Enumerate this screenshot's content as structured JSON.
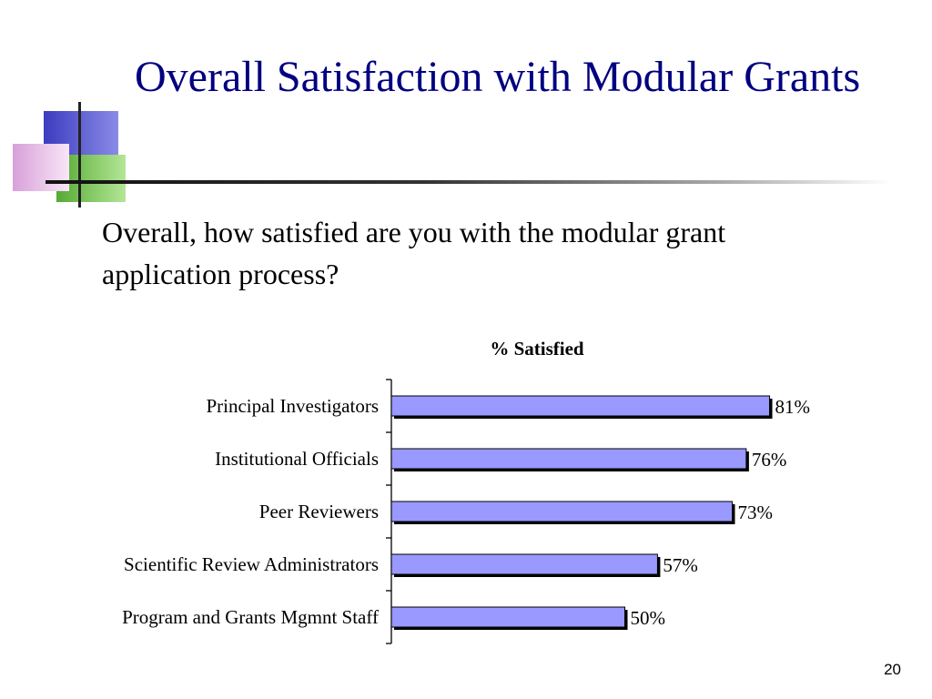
{
  "slide": {
    "title": "Overall Satisfaction with Modular Grants",
    "question": "Overall, how satisfied are you with the modular grant application process?",
    "page_number": "20"
  },
  "colors": {
    "title": "#000080",
    "bar_fill": "#9999ff",
    "bar_shadow": "#000000",
    "deco_blue": "#4a4ac8",
    "deco_green": "#66bb44",
    "deco_pink": "#e6b4e6"
  },
  "chart_data": {
    "type": "bar",
    "orientation": "horizontal",
    "title": "% Satisfied",
    "categories": [
      "Principal Investigators",
      "Institutional Officials",
      "Peer Reviewers",
      "Scientific Review Administrators",
      "Program and Grants Mgmnt Staff"
    ],
    "values": [
      81,
      76,
      73,
      57,
      50
    ],
    "value_labels": [
      "81%",
      "76%",
      "73%",
      "57%",
      "50%"
    ],
    "xlim": [
      0,
      100
    ],
    "grid": false,
    "legend": "none"
  }
}
